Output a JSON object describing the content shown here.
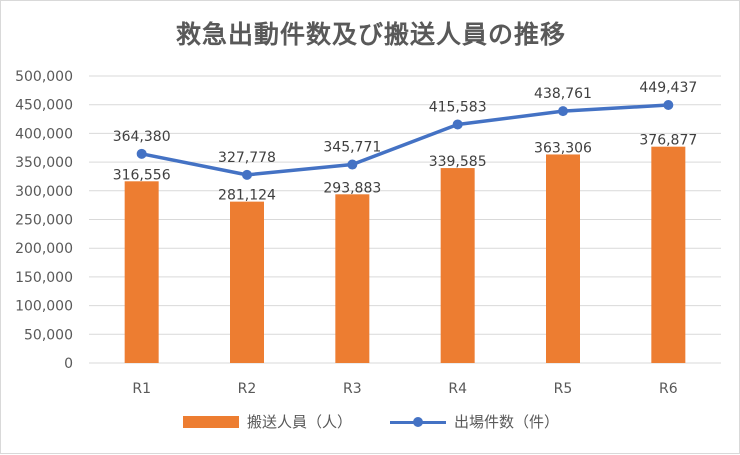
{
  "chart_data": {
    "type": "bar",
    "title": "救急出動件数及び搬送人員の推移",
    "categories": [
      "R1",
      "R2",
      "R3",
      "R4",
      "R5",
      "R6"
    ],
    "ylim": [
      0,
      500000
    ],
    "yticks": [
      0,
      50000,
      100000,
      150000,
      200000,
      250000,
      300000,
      350000,
      400000,
      450000,
      500000
    ],
    "grid": true,
    "legend_position": "bottom",
    "series": [
      {
        "name": "搬送人員（人）",
        "type": "bar",
        "color": "#ed7d31",
        "values": [
          316556,
          281124,
          293883,
          339585,
          363306,
          376877
        ]
      },
      {
        "name": "出場件数（件）",
        "type": "line",
        "color": "#4472c4",
        "values": [
          364380,
          327778,
          345771,
          415583,
          438761,
          449437
        ]
      }
    ]
  }
}
